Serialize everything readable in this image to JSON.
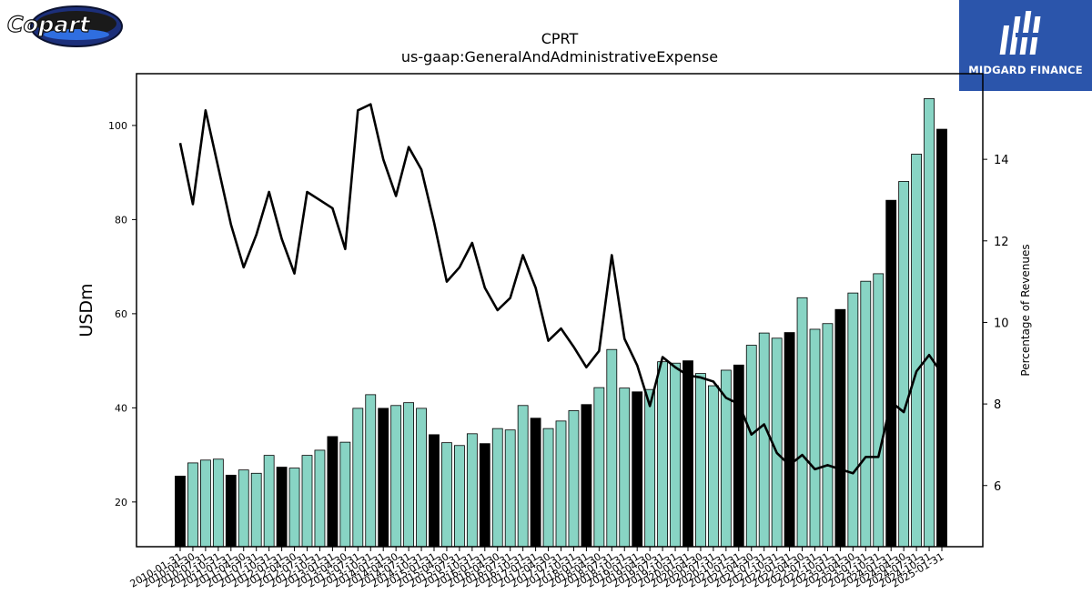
{
  "header": {
    "logo_left_text": "Copart",
    "logo_right_text": "MIDGARD FINANCE"
  },
  "colors": {
    "bar_teal": "#88d4c4",
    "bar_black": "#000000",
    "line": "#000000",
    "brand_blue": "#2b55ab"
  },
  "chart_data": {
    "type": "bar",
    "title": "CPRT",
    "subtitle": "us-gaap:GeneralAndAdministrativeExpense",
    "ylabel": "USDm",
    "y2label": "Percentage of Revenues",
    "ylim": [
      10.5,
      111.0
    ],
    "y2lim": [
      4.5,
      16.1
    ],
    "yticks": [
      20,
      40,
      60,
      80,
      100
    ],
    "y2ticks": [
      6,
      8,
      10,
      12,
      14
    ],
    "grid": false,
    "categories": [
      "2010-01-31",
      "2010-04-30",
      "2010-07-31",
      "2010-10-31",
      "2011-01-31",
      "2011-04-30",
      "2011-07-31",
      "2011-10-31",
      "2012-01-31",
      "2012-04-30",
      "2012-07-31",
      "2012-10-31",
      "2013-01-31",
      "2013-04-30",
      "2013-07-31",
      "2013-10-31",
      "2014-01-31",
      "2014-04-30",
      "2014-07-31",
      "2014-10-31",
      "2015-01-31",
      "2015-04-30",
      "2015-07-31",
      "2015-10-31",
      "2016-01-31",
      "2016-04-30",
      "2016-07-31",
      "2016-10-31",
      "2017-01-31",
      "2017-04-30",
      "2017-07-31",
      "2017-10-31",
      "2018-01-31",
      "2018-04-30",
      "2018-07-31",
      "2018-10-31",
      "2019-01-31",
      "2019-04-30",
      "2019-07-31",
      "2019-10-31",
      "2020-01-31",
      "2020-04-30",
      "2020-07-31",
      "2020-10-31",
      "2021-01-31",
      "2021-04-30",
      "2021-07-31",
      "2021-10-31",
      "2022-01-31",
      "2022-04-30",
      "2022-07-31",
      "2022-10-31",
      "2023-01-31",
      "2023-04-30",
      "2023-07-31",
      "2023-10-31",
      "2024-01-31",
      "2024-04-30",
      "2024-07-31",
      "2024-10-31",
      "2025-01-31"
    ],
    "bar_highlight": [
      true,
      false,
      false,
      false,
      true,
      false,
      false,
      false,
      true,
      false,
      false,
      false,
      true,
      false,
      false,
      false,
      true,
      false,
      false,
      false,
      true,
      false,
      false,
      false,
      true,
      false,
      false,
      false,
      true,
      false,
      false,
      false,
      true,
      false,
      false,
      false,
      true,
      false,
      false,
      false,
      true,
      false,
      false,
      false,
      true,
      false,
      false,
      false,
      true,
      false,
      false,
      false,
      true,
      false,
      false,
      false,
      true,
      false,
      false,
      false,
      true
    ],
    "series": [
      {
        "type": "bar",
        "axis": "left",
        "values": [
          25.5,
          28.3,
          28.9,
          29.1,
          25.7,
          26.8,
          26.1,
          29.9,
          27.4,
          27.2,
          29.9,
          31.0,
          33.9,
          32.7,
          39.9,
          42.8,
          39.9,
          40.5,
          41.1,
          39.9,
          34.3,
          32.6,
          32.0,
          34.5,
          32.4,
          35.6,
          35.3,
          40.5,
          37.8,
          35.6,
          37.2,
          39.4,
          40.7,
          44.3,
          52.4,
          44.2,
          43.4,
          43.9,
          49.8,
          49.5,
          50.0,
          47.3,
          44.7,
          48.0,
          49.1,
          53.3,
          55.9,
          54.8,
          56.0,
          63.4,
          56.7,
          57.9,
          60.9,
          64.4,
          66.9,
          68.5,
          84.1,
          88.1,
          93.9,
          105.7,
          99.2
        ]
      },
      {
        "type": "line",
        "axis": "right",
        "values": [
          14.4,
          12.9,
          15.2,
          13.8,
          12.4,
          11.35,
          12.15,
          13.2,
          12.05,
          11.2,
          13.2,
          13.0,
          12.8,
          11.8,
          15.2,
          15.35,
          14.0,
          13.1,
          14.3,
          13.75,
          12.45,
          11.0,
          11.35,
          11.95,
          10.85,
          10.3,
          10.6,
          11.65,
          10.85,
          9.55,
          9.85,
          9.4,
          8.9,
          9.3,
          11.65,
          9.6,
          8.95,
          7.95,
          9.15,
          8.9,
          8.7,
          8.65,
          8.55,
          8.15,
          8.0,
          7.25,
          7.5,
          6.8,
          6.5,
          6.75,
          6.4,
          6.5,
          6.4,
          6.3,
          6.7,
          6.7,
          8.05,
          7.8,
          8.8,
          9.2,
          8.75
        ]
      }
    ]
  }
}
